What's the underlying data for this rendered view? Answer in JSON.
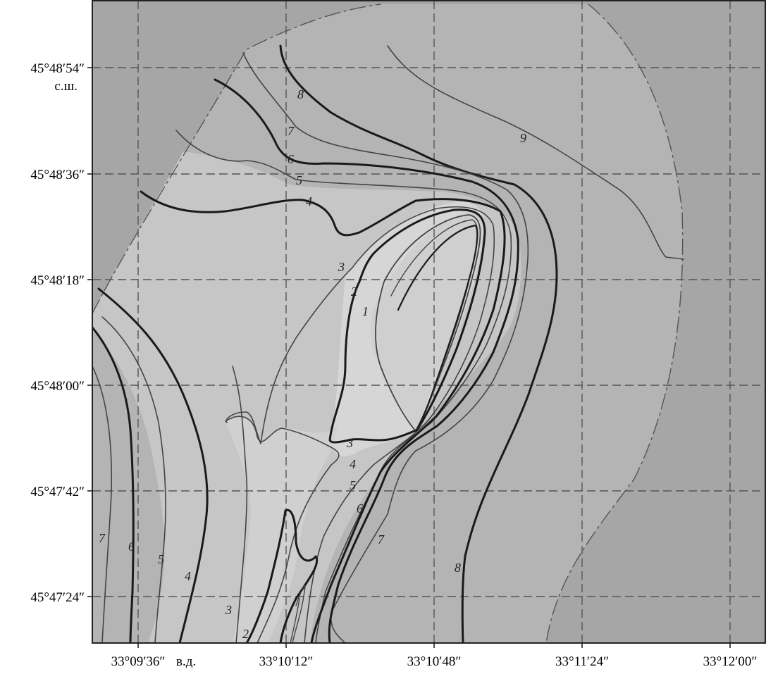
{
  "latitude_ticks": [
    "45°48′54″",
    "45°48′36″",
    "45°48′18″",
    "45°48′00″",
    "45°47′42″",
    "45°47′24″"
  ],
  "latitude_hemisphere": "с.ш.",
  "longitude_ticks": [
    "33°09′36″",
    "33°10′12″",
    "33°10′48″",
    "33°11′24″",
    "33°12′00″"
  ],
  "longitude_hemisphere": "в.д.",
  "contour_labels": {
    "top": [
      "8",
      "7",
      "6",
      "5",
      "4",
      "9"
    ],
    "spit_inner": [
      "3",
      "2",
      "1"
    ],
    "spit_outer": [
      "3",
      "4",
      "5",
      "6",
      "7",
      "8"
    ],
    "left": [
      "7",
      "6",
      "5",
      "4",
      "3",
      "2"
    ]
  },
  "colors": {
    "outer_zone": "#a6a6a6",
    "mid_zone": "#b7b7b7",
    "shallow_zone": "#c9c9c9",
    "shoal_zone": "#d8d8d8",
    "grid": "#555555",
    "contour_bold": "#1a1a1a",
    "contour_thin": "#444444"
  }
}
